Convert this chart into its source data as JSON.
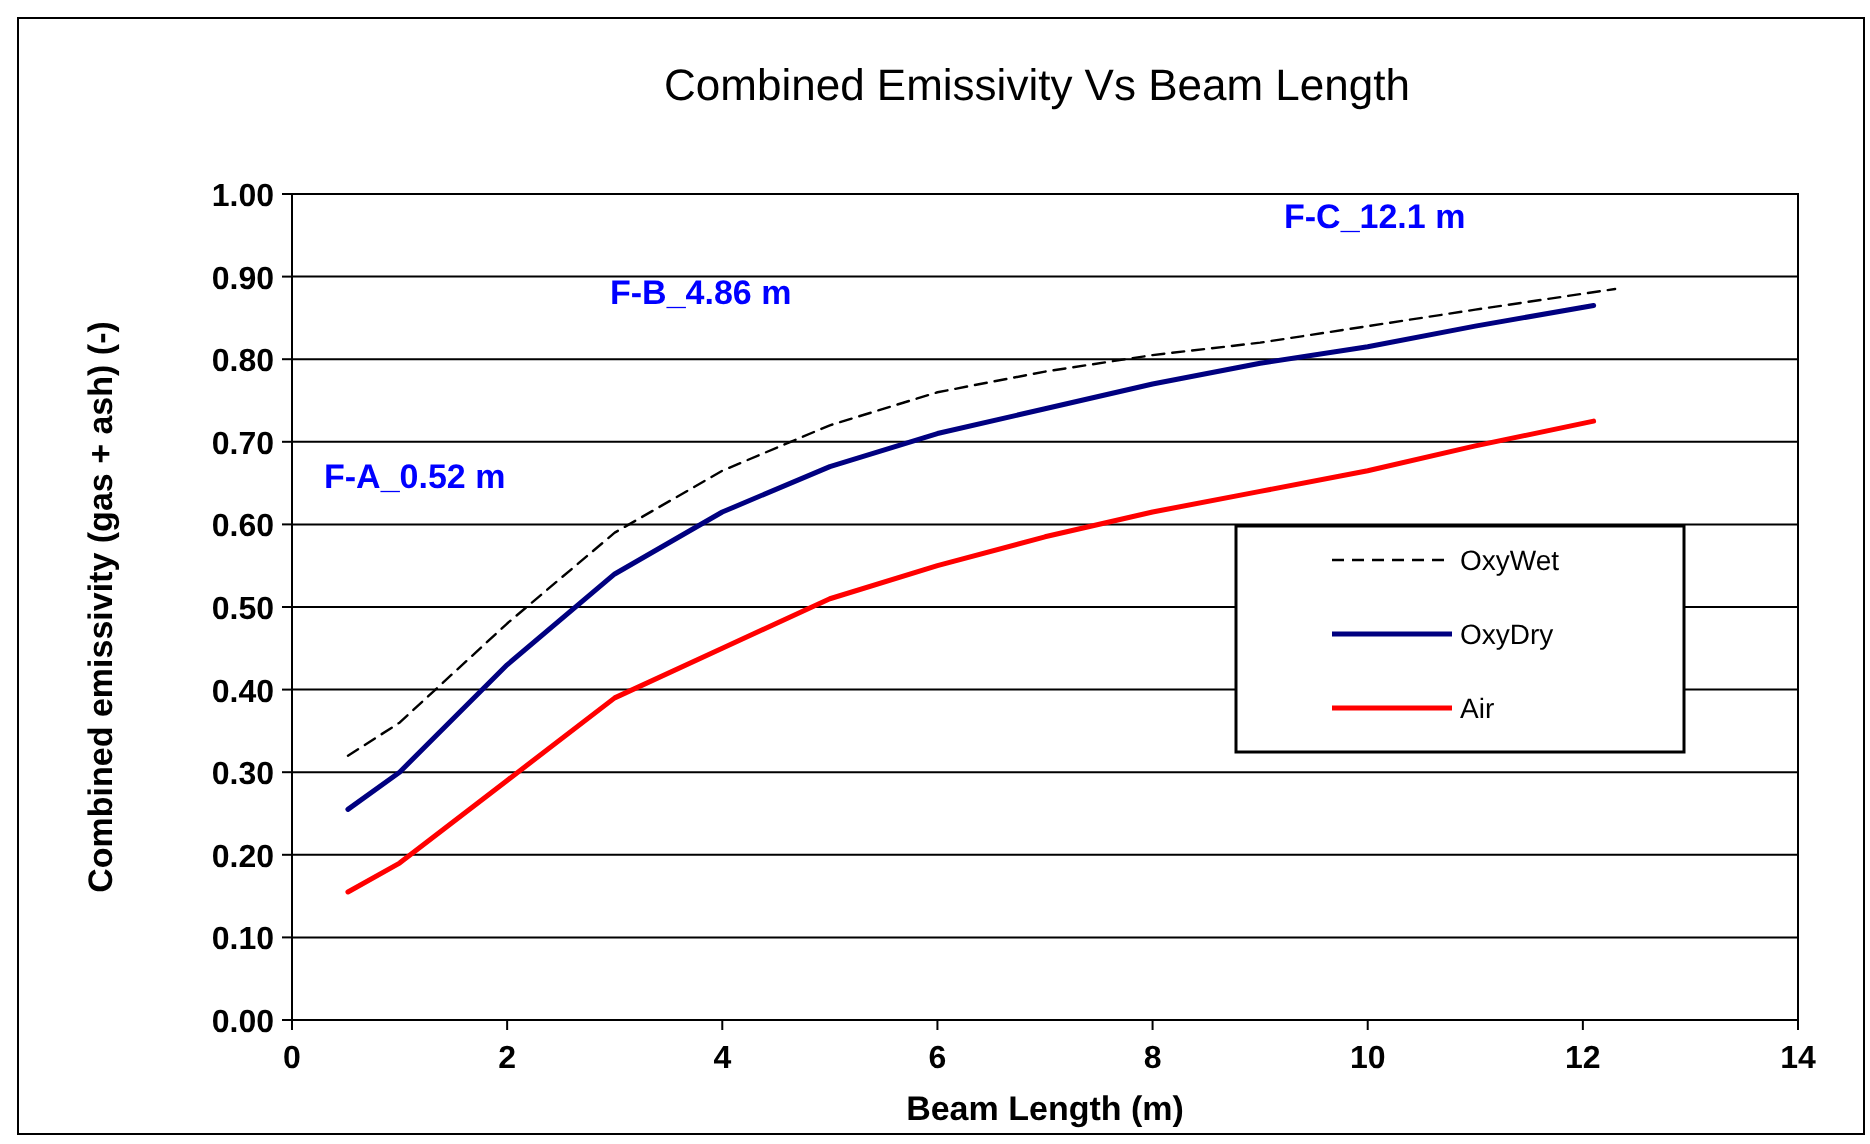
{
  "chart_data": {
    "type": "line",
    "title": "Combined Emissivity Vs Beam Length",
    "xlabel": "Beam Length (m)",
    "ylabel": "Combined emissivity (gas + ash) (-)",
    "xlim": [
      0,
      14
    ],
    "xticks": [
      0,
      2,
      4,
      6,
      8,
      10,
      12,
      14
    ],
    "ylim": [
      0,
      1
    ],
    "yticks": [
      {
        "value": 0,
        "label": "0.00"
      },
      {
        "value": 0.1,
        "label": "0.10"
      },
      {
        "value": 0.2,
        "label": "0.20"
      },
      {
        "value": 0.3,
        "label": "0.30"
      },
      {
        "value": 0.4,
        "label": "0.40"
      },
      {
        "value": 0.5,
        "label": "0.50"
      },
      {
        "value": 0.6,
        "label": "0.60"
      },
      {
        "value": 0.7,
        "label": "0.70"
      },
      {
        "value": 0.8,
        "label": "0.80"
      },
      {
        "value": 0.9,
        "label": "0.90"
      },
      {
        "value": 1,
        "label": "1.00"
      }
    ],
    "grid": "y",
    "legend": "right",
    "marker": "none",
    "series": [
      {
        "name": "OxyWet",
        "color": "#000000",
        "line_style": "dashed",
        "x": [
          0.52,
          1,
          2,
          3,
          4,
          5,
          6,
          7,
          8,
          9,
          10,
          11,
          12.3
        ],
        "values": [
          0.32,
          0.36,
          0.48,
          0.59,
          0.665,
          0.72,
          0.76,
          0.785,
          0.805,
          0.82,
          0.84,
          0.86,
          0.885
        ]
      },
      {
        "name": "OxyDry",
        "color": "#000080",
        "line_style": "solid",
        "x": [
          0.52,
          1,
          2,
          3,
          4,
          5,
          6,
          7,
          8,
          9,
          10,
          11,
          12.1
        ],
        "values": [
          0.255,
          0.3,
          0.43,
          0.54,
          0.615,
          0.67,
          0.71,
          0.74,
          0.77,
          0.795,
          0.815,
          0.84,
          0.865
        ]
      },
      {
        "name": "Air",
        "color": "#ff0000",
        "line_style": "solid",
        "x": [
          0.52,
          1,
          2,
          3,
          4,
          5,
          6,
          7,
          8,
          9,
          10,
          11,
          12.1
        ],
        "values": [
          0.155,
          0.19,
          0.29,
          0.39,
          0.45,
          0.51,
          0.55,
          0.585,
          0.615,
          0.64,
          0.665,
          0.695,
          0.725
        ]
      }
    ],
    "annotations": [
      "F-A_0.52 m",
      "F-B_4.86 m",
      "F-C_12.1 m"
    ]
  }
}
